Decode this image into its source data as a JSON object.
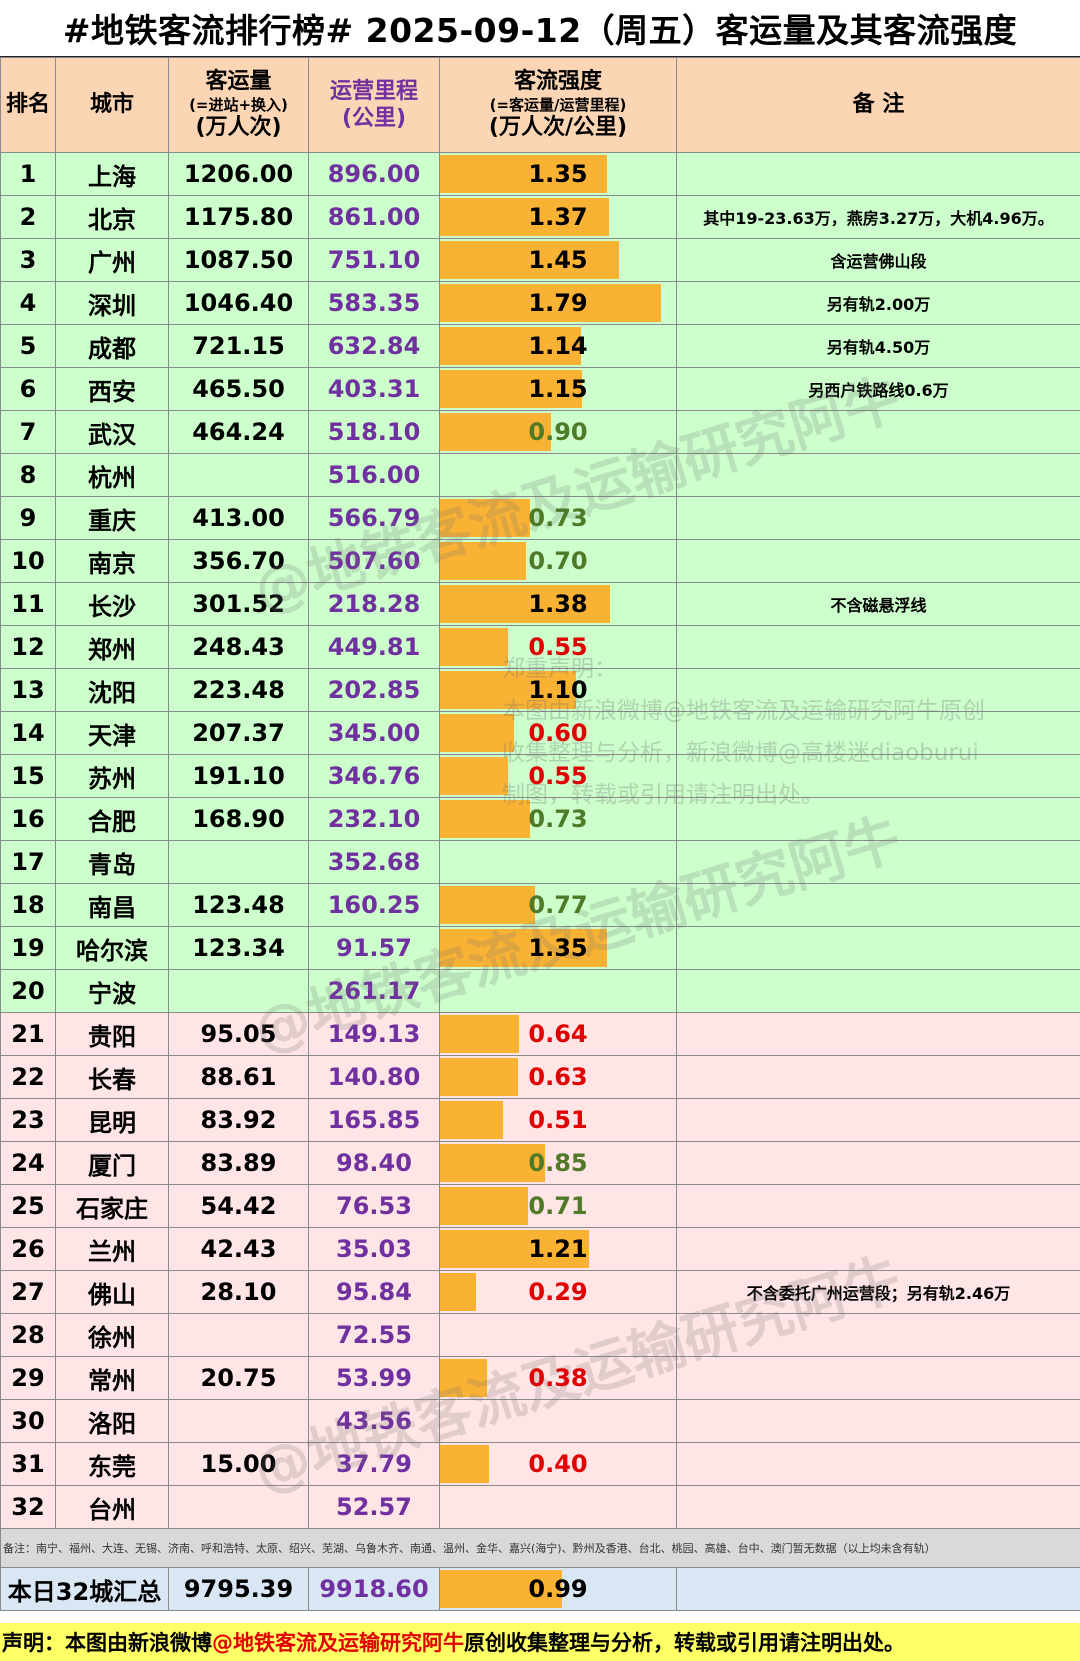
{
  "title": "#地铁客流排行榜# 2025-09-12（周五）客运量及其客流强度",
  "headers": {
    "rank": "排名",
    "city": "城市",
    "ridership_line1": "客运量",
    "ridership_line2": "(=进站+换入)",
    "ridership_line3": "(万人次)",
    "km_line1": "运营里程",
    "km_line2": "(公里)",
    "intensity_line1": "客流强度",
    "intensity_line2": "(=客运量/运营里程)",
    "intensity_line3": "(万人次/公里)",
    "notes": "备 注"
  },
  "chart_data": {
    "type": "table",
    "intensity_scale_max": 1.79,
    "rows": [
      {
        "rank": "1",
        "city": "上海",
        "ridership": "1206.00",
        "km": "896.00",
        "intensity": 1.35,
        "intensity_text": "1.35",
        "note": ""
      },
      {
        "rank": "2",
        "city": "北京",
        "ridership": "1175.80",
        "km": "861.00",
        "intensity": 1.37,
        "intensity_text": "1.37",
        "note": "其中19-23.63万，燕房3.27万，大机4.96万。"
      },
      {
        "rank": "3",
        "city": "广州",
        "ridership": "1087.50",
        "km": "751.10",
        "intensity": 1.45,
        "intensity_text": "1.45",
        "note": "含运营佛山段"
      },
      {
        "rank": "4",
        "city": "深圳",
        "ridership": "1046.40",
        "km": "583.35",
        "intensity": 1.79,
        "intensity_text": "1.79",
        "note": "另有轨2.00万"
      },
      {
        "rank": "5",
        "city": "成都",
        "ridership": "721.15",
        "km": "632.84",
        "intensity": 1.14,
        "intensity_text": "1.14",
        "note": "另有轨4.50万"
      },
      {
        "rank": "6",
        "city": "西安",
        "ridership": "465.50",
        "km": "403.31",
        "intensity": 1.15,
        "intensity_text": "1.15",
        "note": "另西户铁路线0.6万"
      },
      {
        "rank": "7",
        "city": "武汉",
        "ridership": "464.24",
        "km": "518.10",
        "intensity": 0.9,
        "intensity_text": "0.90",
        "note": ""
      },
      {
        "rank": "8",
        "city": "杭州",
        "ridership": "",
        "km": "516.00",
        "intensity": null,
        "intensity_text": "",
        "note": ""
      },
      {
        "rank": "9",
        "city": "重庆",
        "ridership": "413.00",
        "km": "566.79",
        "intensity": 0.73,
        "intensity_text": "0.73",
        "note": ""
      },
      {
        "rank": "10",
        "city": "南京",
        "ridership": "356.70",
        "km": "507.60",
        "intensity": 0.7,
        "intensity_text": "0.70",
        "note": ""
      },
      {
        "rank": "11",
        "city": "长沙",
        "ridership": "301.52",
        "km": "218.28",
        "intensity": 1.38,
        "intensity_text": "1.38",
        "note": "不含磁悬浮线"
      },
      {
        "rank": "12",
        "city": "郑州",
        "ridership": "248.43",
        "km": "449.81",
        "intensity": 0.55,
        "intensity_text": "0.55",
        "note": ""
      },
      {
        "rank": "13",
        "city": "沈阳",
        "ridership": "223.48",
        "km": "202.85",
        "intensity": 1.1,
        "intensity_text": "1.10",
        "note": ""
      },
      {
        "rank": "14",
        "city": "天津",
        "ridership": "207.37",
        "km": "345.00",
        "intensity": 0.6,
        "intensity_text": "0.60",
        "note": ""
      },
      {
        "rank": "15",
        "city": "苏州",
        "ridership": "191.10",
        "km": "346.76",
        "intensity": 0.55,
        "intensity_text": "0.55",
        "note": ""
      },
      {
        "rank": "16",
        "city": "合肥",
        "ridership": "168.90",
        "km": "232.10",
        "intensity": 0.73,
        "intensity_text": "0.73",
        "note": ""
      },
      {
        "rank": "17",
        "city": "青岛",
        "ridership": "",
        "km": "352.68",
        "intensity": null,
        "intensity_text": "",
        "note": ""
      },
      {
        "rank": "18",
        "city": "南昌",
        "ridership": "123.48",
        "km": "160.25",
        "intensity": 0.77,
        "intensity_text": "0.77",
        "note": ""
      },
      {
        "rank": "19",
        "city": "哈尔滨",
        "ridership": "123.34",
        "km": "91.57",
        "intensity": 1.35,
        "intensity_text": "1.35",
        "note": ""
      },
      {
        "rank": "20",
        "city": "宁波",
        "ridership": "",
        "km": "261.17",
        "intensity": null,
        "intensity_text": "",
        "note": ""
      },
      {
        "rank": "21",
        "city": "贵阳",
        "ridership": "95.05",
        "km": "149.13",
        "intensity": 0.64,
        "intensity_text": "0.64",
        "note": ""
      },
      {
        "rank": "22",
        "city": "长春",
        "ridership": "88.61",
        "km": "140.80",
        "intensity": 0.63,
        "intensity_text": "0.63",
        "note": ""
      },
      {
        "rank": "23",
        "city": "昆明",
        "ridership": "83.92",
        "km": "165.85",
        "intensity": 0.51,
        "intensity_text": "0.51",
        "note": ""
      },
      {
        "rank": "24",
        "city": "厦门",
        "ridership": "83.89",
        "km": "98.40",
        "intensity": 0.85,
        "intensity_text": "0.85",
        "note": ""
      },
      {
        "rank": "25",
        "city": "石家庄",
        "ridership": "54.42",
        "km": "76.53",
        "intensity": 0.71,
        "intensity_text": "0.71",
        "note": ""
      },
      {
        "rank": "26",
        "city": "兰州",
        "ridership": "42.43",
        "km": "35.03",
        "intensity": 1.21,
        "intensity_text": "1.21",
        "note": ""
      },
      {
        "rank": "27",
        "city": "佛山",
        "ridership": "28.10",
        "km": "95.84",
        "intensity": 0.29,
        "intensity_text": "0.29",
        "note": "不含委托广州运营段；另有轨2.46万"
      },
      {
        "rank": "28",
        "city": "徐州",
        "ridership": "",
        "km": "72.55",
        "intensity": null,
        "intensity_text": "",
        "note": ""
      },
      {
        "rank": "29",
        "city": "常州",
        "ridership": "20.75",
        "km": "53.99",
        "intensity": 0.38,
        "intensity_text": "0.38",
        "note": ""
      },
      {
        "rank": "30",
        "city": "洛阳",
        "ridership": "",
        "km": "43.56",
        "intensity": null,
        "intensity_text": "",
        "note": ""
      },
      {
        "rank": "31",
        "city": "东莞",
        "ridership": "15.00",
        "km": "37.79",
        "intensity": 0.4,
        "intensity_text": "0.40",
        "note": ""
      },
      {
        "rank": "32",
        "city": "台州",
        "ridership": "",
        "km": "52.57",
        "intensity": null,
        "intensity_text": "",
        "note": ""
      }
    ],
    "summary": {
      "label": "本日32城汇总",
      "ridership": "9795.39",
      "km": "9918.60",
      "intensity": 0.99,
      "intensity_text": "0.99"
    }
  },
  "footnote": "备注：南宁、福州、大连、无锡、济南、呼和浩特、太原、绍兴、芜湖、乌鲁木齐、南通、温州、金华、嘉兴(海宁)、黔州及香港、台北、桃园、高雄、台中、澳门暂无数据（以上均未含有轨）",
  "disclaimer_prefix": "声明：本图由新浪微博",
  "disclaimer_highlight": "@地铁客流及运输研究阿牛",
  "disclaimer_suffix": " 原创收集整理与分析，转载或引用请注明出处。",
  "watermark_text": "@地铁客流及运输研究阿牛",
  "notice_lines": [
    "郑重声明：",
    "本图由新浪微博@地铁客流及运输研究阿牛原创",
    "收集整理与分析，新浪微博@高楼迷diaoburui",
    "制图，转载或引用请注明出处。"
  ],
  "colors": {
    "header_bg": "#fcd5b4",
    "rows_top_bg": "#ccffcc",
    "rows_bottom_bg": "#ffe5e5",
    "bar": "#f9b233",
    "km_text": "#7030a0",
    "intensity_high": "#000000",
    "intensity_mid": "#4f7a28",
    "intensity_low": "#e00000"
  }
}
